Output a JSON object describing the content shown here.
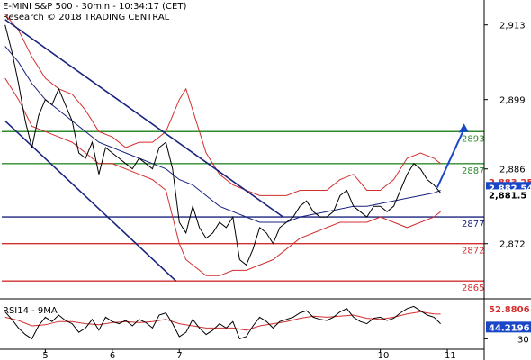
{
  "header": {
    "title": "E-MINI S&P 500 - 30min - 10:34:17 (CET)",
    "subtitle": "Research © 2018 TRADING CENTRAL"
  },
  "chart_data": {
    "type": "line",
    "instrument": "E-MINI S&P 500",
    "timeframe": "30min",
    "ylim": [
      2862,
      2917
    ],
    "y_ticks": [
      2913,
      2899,
      2886,
      2872
    ],
    "y_tick_labels": [
      "2,913",
      "2,899",
      "2,886",
      "2,872"
    ],
    "x_ticks": [
      5,
      6,
      7,
      10,
      11
    ],
    "x_tick_labels": [
      "5",
      "6",
      "7",
      "10",
      "11"
    ],
    "xlim": [
      4.35,
      11.55
    ],
    "grid": false,
    "levels": [
      {
        "value": 2893,
        "label": "2893",
        "color": "#2e8b2e"
      },
      {
        "value": 2887,
        "label": "2887",
        "color": "#2e8b2e"
      },
      {
        "value": 2877,
        "label": "2877",
        "color": "#1a237e"
      },
      {
        "value": 2872,
        "label": "2872",
        "color": "#d32f2f"
      },
      {
        "value": 2865,
        "label": "2865",
        "color": "#d32f2f"
      }
    ],
    "current_price_badges": [
      {
        "label": "2,883.25",
        "value": 2883.25,
        "bg": "#ffffff",
        "fg": "#d32f2f"
      },
      {
        "label": "2,882.54",
        "value": 2882.54,
        "bg": "#1a47c8",
        "fg": "#ffffff"
      },
      {
        "label": "2,881.5",
        "value": 2881.5,
        "bg": "#ffffff",
        "fg": "#000000"
      }
    ],
    "channel_upper": [
      [
        4.4,
        2914
      ],
      [
        8.55,
        2877
      ]
    ],
    "channel_lower": [
      [
        4.4,
        2895
      ],
      [
        6.95,
        2865
      ]
    ],
    "forecast_arrow": [
      [
        10.85,
        2882.5
      ],
      [
        11.25,
        2894.5
      ]
    ],
    "price": [
      [
        4.4,
        2913
      ],
      [
        4.5,
        2908
      ],
      [
        4.6,
        2902
      ],
      [
        4.7,
        2895
      ],
      [
        4.8,
        2890
      ],
      [
        4.9,
        2896
      ],
      [
        5.0,
        2899
      ],
      [
        5.1,
        2898
      ],
      [
        5.2,
        2901
      ],
      [
        5.3,
        2898
      ],
      [
        5.4,
        2895
      ],
      [
        5.5,
        2889
      ],
      [
        5.6,
        2888
      ],
      [
        5.7,
        2891
      ],
      [
        5.8,
        2885
      ],
      [
        5.9,
        2890
      ],
      [
        6.0,
        2889
      ],
      [
        6.1,
        2888
      ],
      [
        6.2,
        2887
      ],
      [
        6.3,
        2886
      ],
      [
        6.4,
        2888
      ],
      [
        6.5,
        2887
      ],
      [
        6.6,
        2886
      ],
      [
        6.7,
        2890
      ],
      [
        6.8,
        2891
      ],
      [
        6.9,
        2886
      ],
      [
        7.0,
        2876
      ],
      [
        7.1,
        2874
      ],
      [
        7.2,
        2879
      ],
      [
        7.3,
        2875
      ],
      [
        7.4,
        2873
      ],
      [
        7.5,
        2874
      ],
      [
        7.6,
        2876
      ],
      [
        7.7,
        2875
      ],
      [
        7.8,
        2877
      ],
      [
        7.9,
        2869
      ],
      [
        8.0,
        2868
      ],
      [
        8.1,
        2871
      ],
      [
        8.2,
        2875
      ],
      [
        8.3,
        2874
      ],
      [
        8.4,
        2872
      ],
      [
        8.5,
        2875
      ],
      [
        8.6,
        2876
      ],
      [
        8.7,
        2877
      ],
      [
        8.8,
        2879
      ],
      [
        8.9,
        2880
      ],
      [
        9.0,
        2878
      ],
      [
        9.1,
        2877
      ],
      [
        9.2,
        2877
      ],
      [
        9.3,
        2878
      ],
      [
        9.4,
        2881
      ],
      [
        9.5,
        2882
      ],
      [
        9.6,
        2879
      ],
      [
        9.7,
        2878
      ],
      [
        9.8,
        2877
      ],
      [
        9.9,
        2879
      ],
      [
        10.0,
        2879
      ],
      [
        10.1,
        2878
      ],
      [
        10.2,
        2879
      ],
      [
        10.3,
        2882
      ],
      [
        10.4,
        2885
      ],
      [
        10.5,
        2887
      ],
      [
        10.6,
        2886
      ],
      [
        10.7,
        2884
      ],
      [
        10.8,
        2883
      ],
      [
        10.9,
        2881.5
      ]
    ],
    "ma": [
      [
        4.4,
        2909
      ],
      [
        4.6,
        2906
      ],
      [
        4.8,
        2902
      ],
      [
        5.0,
        2899
      ],
      [
        5.2,
        2897
      ],
      [
        5.4,
        2895
      ],
      [
        5.6,
        2893
      ],
      [
        5.8,
        2891
      ],
      [
        6.0,
        2890
      ],
      [
        6.2,
        2889
      ],
      [
        6.4,
        2888
      ],
      [
        6.6,
        2887
      ],
      [
        6.8,
        2886
      ],
      [
        7.0,
        2884
      ],
      [
        7.2,
        2883
      ],
      [
        7.4,
        2881
      ],
      [
        7.6,
        2879
      ],
      [
        7.8,
        2878
      ],
      [
        8.0,
        2877
      ],
      [
        8.2,
        2876
      ],
      [
        8.4,
        2876
      ],
      [
        8.6,
        2876
      ],
      [
        8.8,
        2877
      ],
      [
        9.0,
        2877.5
      ],
      [
        9.2,
        2878
      ],
      [
        9.4,
        2878.5
      ],
      [
        9.6,
        2879
      ],
      [
        9.8,
        2879
      ],
      [
        10.0,
        2879.5
      ],
      [
        10.2,
        2880
      ],
      [
        10.4,
        2880.5
      ],
      [
        10.6,
        2881
      ],
      [
        10.8,
        2881.5
      ],
      [
        10.9,
        2882
      ]
    ],
    "bb_upper": [
      [
        4.4,
        2915
      ],
      [
        4.6,
        2912
      ],
      [
        4.8,
        2907
      ],
      [
        5.0,
        2903
      ],
      [
        5.2,
        2901
      ],
      [
        5.4,
        2900
      ],
      [
        5.6,
        2897
      ],
      [
        5.8,
        2893
      ],
      [
        6.0,
        2892
      ],
      [
        6.2,
        2890
      ],
      [
        6.4,
        2891
      ],
      [
        6.6,
        2891
      ],
      [
        6.8,
        2893
      ],
      [
        7.0,
        2899
      ],
      [
        7.1,
        2901
      ],
      [
        7.2,
        2897
      ],
      [
        7.4,
        2889
      ],
      [
        7.6,
        2885
      ],
      [
        7.8,
        2883
      ],
      [
        8.0,
        2882
      ],
      [
        8.2,
        2881
      ],
      [
        8.4,
        2881
      ],
      [
        8.6,
        2881
      ],
      [
        8.8,
        2882
      ],
      [
        9.0,
        2882
      ],
      [
        9.2,
        2882
      ],
      [
        9.4,
        2884
      ],
      [
        9.6,
        2885
      ],
      [
        9.8,
        2882
      ],
      [
        10.0,
        2882
      ],
      [
        10.2,
        2884
      ],
      [
        10.4,
        2888
      ],
      [
        10.6,
        2889
      ],
      [
        10.8,
        2888
      ],
      [
        10.9,
        2887
      ]
    ],
    "bb_lower": [
      [
        4.4,
        2903
      ],
      [
        4.6,
        2899
      ],
      [
        4.8,
        2894
      ],
      [
        5.0,
        2893
      ],
      [
        5.2,
        2892
      ],
      [
        5.4,
        2891
      ],
      [
        5.6,
        2889
      ],
      [
        5.8,
        2887
      ],
      [
        6.0,
        2887
      ],
      [
        6.2,
        2886
      ],
      [
        6.4,
        2885
      ],
      [
        6.6,
        2884
      ],
      [
        6.8,
        2882
      ],
      [
        7.0,
        2872
      ],
      [
        7.1,
        2869
      ],
      [
        7.2,
        2868
      ],
      [
        7.4,
        2866
      ],
      [
        7.6,
        2866
      ],
      [
        7.8,
        2867
      ],
      [
        8.0,
        2867
      ],
      [
        8.2,
        2868
      ],
      [
        8.4,
        2869
      ],
      [
        8.6,
        2871
      ],
      [
        8.8,
        2873
      ],
      [
        9.0,
        2874
      ],
      [
        9.2,
        2875
      ],
      [
        9.4,
        2876
      ],
      [
        9.6,
        2876
      ],
      [
        9.8,
        2876
      ],
      [
        10.0,
        2877
      ],
      [
        10.2,
        2876
      ],
      [
        10.4,
        2875
      ],
      [
        10.6,
        2876
      ],
      [
        10.8,
        2877
      ],
      [
        10.9,
        2878
      ]
    ],
    "rsi_panel": {
      "title": "RSI14 - 9MA",
      "ylim": [
        22,
        62
      ],
      "y_tick_labels": [
        "30"
      ],
      "y_ticks": [
        30
      ],
      "badges": [
        {
          "label": "52.8806",
          "value": 52.88,
          "bg": "#ffffff",
          "fg": "#d32f2f"
        },
        {
          "label": "44.2196",
          "value": 44.22,
          "bg": "#1a47c8",
          "fg": "#ffffff"
        }
      ],
      "rsi": [
        [
          4.4,
          55
        ],
        [
          4.5,
          48
        ],
        [
          4.6,
          40
        ],
        [
          4.7,
          34
        ],
        [
          4.8,
          30
        ],
        [
          4.9,
          42
        ],
        [
          5.0,
          50
        ],
        [
          5.1,
          46
        ],
        [
          5.2,
          52
        ],
        [
          5.3,
          47
        ],
        [
          5.4,
          44
        ],
        [
          5.5,
          36
        ],
        [
          5.6,
          40
        ],
        [
          5.7,
          48
        ],
        [
          5.8,
          38
        ],
        [
          5.9,
          50
        ],
        [
          6.0,
          46
        ],
        [
          6.1,
          44
        ],
        [
          6.2,
          47
        ],
        [
          6.3,
          42
        ],
        [
          6.4,
          48
        ],
        [
          6.5,
          45
        ],
        [
          6.6,
          40
        ],
        [
          6.7,
          52
        ],
        [
          6.8,
          54
        ],
        [
          6.9,
          44
        ],
        [
          7.0,
          32
        ],
        [
          7.1,
          36
        ],
        [
          7.2,
          48
        ],
        [
          7.3,
          40
        ],
        [
          7.4,
          34
        ],
        [
          7.5,
          38
        ],
        [
          7.6,
          44
        ],
        [
          7.7,
          40
        ],
        [
          7.8,
          46
        ],
        [
          7.9,
          30
        ],
        [
          8.0,
          32
        ],
        [
          8.1,
          42
        ],
        [
          8.2,
          50
        ],
        [
          8.3,
          46
        ],
        [
          8.4,
          40
        ],
        [
          8.5,
          46
        ],
        [
          8.6,
          48
        ],
        [
          8.7,
          50
        ],
        [
          8.8,
          54
        ],
        [
          8.9,
          56
        ],
        [
          9.0,
          50
        ],
        [
          9.1,
          48
        ],
        [
          9.2,
          47
        ],
        [
          9.3,
          50
        ],
        [
          9.4,
          55
        ],
        [
          9.5,
          58
        ],
        [
          9.6,
          50
        ],
        [
          9.7,
          46
        ],
        [
          9.8,
          44
        ],
        [
          9.9,
          49
        ],
        [
          10.0,
          50
        ],
        [
          10.1,
          47
        ],
        [
          10.2,
          49
        ],
        [
          10.3,
          54
        ],
        [
          10.4,
          58
        ],
        [
          10.5,
          60
        ],
        [
          10.6,
          56
        ],
        [
          10.7,
          52
        ],
        [
          10.8,
          50
        ],
        [
          10.9,
          44
        ]
      ],
      "rsi_ma": [
        [
          4.4,
          50
        ],
        [
          4.6,
          47
        ],
        [
          4.8,
          42
        ],
        [
          5.0,
          43
        ],
        [
          5.2,
          46
        ],
        [
          5.4,
          46
        ],
        [
          5.6,
          44
        ],
        [
          5.8,
          43
        ],
        [
          6.0,
          45
        ],
        [
          6.2,
          46
        ],
        [
          6.4,
          45
        ],
        [
          6.6,
          46
        ],
        [
          6.8,
          48
        ],
        [
          7.0,
          44
        ],
        [
          7.2,
          42
        ],
        [
          7.4,
          40
        ],
        [
          7.6,
          40
        ],
        [
          7.8,
          40
        ],
        [
          8.0,
          38
        ],
        [
          8.2,
          42
        ],
        [
          8.4,
          44
        ],
        [
          8.6,
          46
        ],
        [
          8.8,
          49
        ],
        [
          9.0,
          51
        ],
        [
          9.2,
          50
        ],
        [
          9.4,
          51
        ],
        [
          9.6,
          52
        ],
        [
          9.8,
          49
        ],
        [
          10.0,
          48
        ],
        [
          10.2,
          50
        ],
        [
          10.4,
          53
        ],
        [
          10.6,
          55
        ],
        [
          10.8,
          53
        ],
        [
          10.9,
          52.88
        ]
      ]
    }
  },
  "colors": {
    "price": "#000000",
    "channel": "#1a237e",
    "ma": "#1a237e",
    "bollinger": "#d32f2f",
    "arrow": "#1a47c8",
    "axis": "#000000"
  }
}
